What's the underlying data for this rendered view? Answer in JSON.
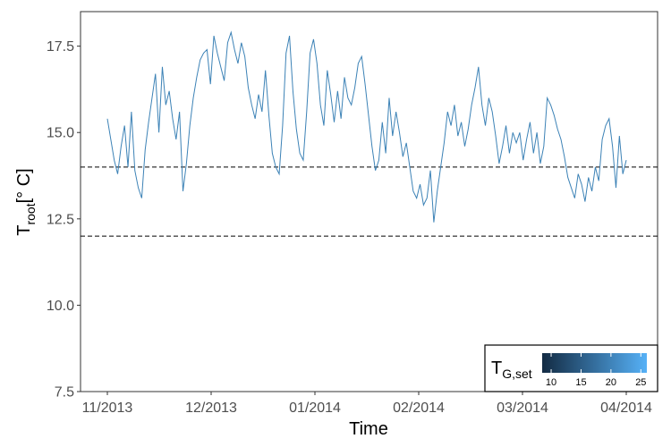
{
  "chart_data": {
    "type": "line",
    "xlabel": "Time",
    "ylabel": {
      "main": "T",
      "sub": "root",
      "unit": "[° C]"
    },
    "x_ticks": [
      "11/2013",
      "12/2013",
      "01/2014",
      "02/2014",
      "03/2014",
      "04/2014"
    ],
    "x_range": [
      "2013-11-01",
      "2014-04-01"
    ],
    "y_ticks": [
      "7.5",
      "10.0",
      "12.5",
      "15.0",
      "17.5"
    ],
    "ylim": [
      7.5,
      18.5
    ],
    "grid": false,
    "reference_lines": [
      {
        "y": 14.0,
        "style": "dashed"
      },
      {
        "y": 12.0,
        "style": "dashed"
      }
    ],
    "series": [
      {
        "color": "#3c82b6",
        "points": [
          [
            "2013-11-01",
            15.4
          ],
          [
            "2013-11-02",
            14.8
          ],
          [
            "2013-11-03",
            14.2
          ],
          [
            "2013-11-04",
            13.8
          ],
          [
            "2013-11-05",
            14.6
          ],
          [
            "2013-11-06",
            15.2
          ],
          [
            "2013-11-07",
            14.0
          ],
          [
            "2013-11-08",
            15.6
          ],
          [
            "2013-11-09",
            13.9
          ],
          [
            "2013-11-10",
            13.4
          ],
          [
            "2013-11-11",
            13.1
          ],
          [
            "2013-11-12",
            14.5
          ],
          [
            "2013-11-13",
            15.3
          ],
          [
            "2013-11-14",
            16.0
          ],
          [
            "2013-11-15",
            16.7
          ],
          [
            "2013-11-16",
            15.0
          ],
          [
            "2013-11-17",
            16.9
          ],
          [
            "2013-11-18",
            15.8
          ],
          [
            "2013-11-19",
            16.2
          ],
          [
            "2013-11-20",
            15.4
          ],
          [
            "2013-11-21",
            14.8
          ],
          [
            "2013-11-22",
            15.6
          ],
          [
            "2013-11-23",
            13.3
          ],
          [
            "2013-11-24",
            14.1
          ],
          [
            "2013-11-25",
            15.2
          ],
          [
            "2013-11-26",
            16.0
          ],
          [
            "2013-11-27",
            16.6
          ],
          [
            "2013-11-28",
            17.1
          ],
          [
            "2013-11-29",
            17.3
          ],
          [
            "2013-11-30",
            17.4
          ],
          [
            "2013-12-01",
            16.4
          ],
          [
            "2013-12-02",
            17.8
          ],
          [
            "2013-12-03",
            17.3
          ],
          [
            "2013-12-04",
            16.9
          ],
          [
            "2013-12-05",
            16.5
          ],
          [
            "2013-12-06",
            17.6
          ],
          [
            "2013-12-07",
            17.9
          ],
          [
            "2013-12-08",
            17.4
          ],
          [
            "2013-12-09",
            17.0
          ],
          [
            "2013-12-10",
            17.6
          ],
          [
            "2013-12-11",
            17.2
          ],
          [
            "2013-12-12",
            16.3
          ],
          [
            "2013-12-13",
            15.8
          ],
          [
            "2013-12-14",
            15.4
          ],
          [
            "2013-12-15",
            16.1
          ],
          [
            "2013-12-16",
            15.6
          ],
          [
            "2013-12-17",
            16.8
          ],
          [
            "2013-12-18",
            15.5
          ],
          [
            "2013-12-19",
            14.4
          ],
          [
            "2013-12-20",
            14.0
          ],
          [
            "2013-12-21",
            13.8
          ],
          [
            "2013-12-22",
            15.2
          ],
          [
            "2013-12-23",
            17.3
          ],
          [
            "2013-12-24",
            17.8
          ],
          [
            "2013-12-25",
            16.2
          ],
          [
            "2013-12-26",
            15.1
          ],
          [
            "2013-12-27",
            14.4
          ],
          [
            "2013-12-28",
            14.2
          ],
          [
            "2013-12-29",
            15.6
          ],
          [
            "2013-12-30",
            17.3
          ],
          [
            "2013-12-31",
            17.7
          ],
          [
            "2014-01-01",
            17.0
          ],
          [
            "2014-01-02",
            15.8
          ],
          [
            "2014-01-03",
            15.2
          ],
          [
            "2014-01-04",
            16.8
          ],
          [
            "2014-01-05",
            16.1
          ],
          [
            "2014-01-06",
            15.3
          ],
          [
            "2014-01-07",
            16.2
          ],
          [
            "2014-01-08",
            15.4
          ],
          [
            "2014-01-09",
            16.6
          ],
          [
            "2014-01-10",
            16.0
          ],
          [
            "2014-01-11",
            15.8
          ],
          [
            "2014-01-12",
            16.3
          ],
          [
            "2014-01-13",
            17.0
          ],
          [
            "2014-01-14",
            17.2
          ],
          [
            "2014-01-15",
            16.4
          ],
          [
            "2014-01-16",
            15.5
          ],
          [
            "2014-01-17",
            14.6
          ],
          [
            "2014-01-18",
            13.9
          ],
          [
            "2014-01-19",
            14.2
          ],
          [
            "2014-01-20",
            15.3
          ],
          [
            "2014-01-21",
            14.4
          ],
          [
            "2014-01-22",
            16.0
          ],
          [
            "2014-01-23",
            14.9
          ],
          [
            "2014-01-24",
            15.6
          ],
          [
            "2014-01-25",
            15.0
          ],
          [
            "2014-01-26",
            14.3
          ],
          [
            "2014-01-27",
            14.7
          ],
          [
            "2014-01-28",
            14.0
          ],
          [
            "2014-01-29",
            13.3
          ],
          [
            "2014-01-30",
            13.1
          ],
          [
            "2014-01-31",
            13.5
          ],
          [
            "2014-02-01",
            12.9
          ],
          [
            "2014-02-02",
            13.1
          ],
          [
            "2014-02-03",
            13.9
          ],
          [
            "2014-02-04",
            12.4
          ],
          [
            "2014-02-05",
            13.3
          ],
          [
            "2014-02-06",
            14.0
          ],
          [
            "2014-02-07",
            14.7
          ],
          [
            "2014-02-08",
            15.6
          ],
          [
            "2014-02-09",
            15.2
          ],
          [
            "2014-02-10",
            15.8
          ],
          [
            "2014-02-11",
            14.9
          ],
          [
            "2014-02-12",
            15.3
          ],
          [
            "2014-02-13",
            14.6
          ],
          [
            "2014-02-14",
            15.1
          ],
          [
            "2014-02-15",
            15.8
          ],
          [
            "2014-02-16",
            16.3
          ],
          [
            "2014-02-17",
            16.9
          ],
          [
            "2014-02-18",
            15.8
          ],
          [
            "2014-02-19",
            15.2
          ],
          [
            "2014-02-20",
            16.0
          ],
          [
            "2014-02-21",
            15.6
          ],
          [
            "2014-02-22",
            14.9
          ],
          [
            "2014-02-23",
            14.1
          ],
          [
            "2014-02-24",
            14.6
          ],
          [
            "2014-02-25",
            15.2
          ],
          [
            "2014-02-26",
            14.4
          ],
          [
            "2014-02-27",
            15.0
          ],
          [
            "2014-02-28",
            14.7
          ],
          [
            "2014-03-01",
            15.0
          ],
          [
            "2014-03-02",
            14.2
          ],
          [
            "2014-03-03",
            14.8
          ],
          [
            "2014-03-04",
            15.3
          ],
          [
            "2014-03-05",
            14.4
          ],
          [
            "2014-03-06",
            15.0
          ],
          [
            "2014-03-07",
            14.1
          ],
          [
            "2014-03-08",
            14.6
          ],
          [
            "2014-03-09",
            16.0
          ],
          [
            "2014-03-10",
            15.8
          ],
          [
            "2014-03-11",
            15.5
          ],
          [
            "2014-03-12",
            15.1
          ],
          [
            "2014-03-13",
            14.8
          ],
          [
            "2014-03-14",
            14.3
          ],
          [
            "2014-03-15",
            13.7
          ],
          [
            "2014-03-16",
            13.4
          ],
          [
            "2014-03-17",
            13.1
          ],
          [
            "2014-03-18",
            13.8
          ],
          [
            "2014-03-19",
            13.5
          ],
          [
            "2014-03-20",
            13.0
          ],
          [
            "2014-03-21",
            13.7
          ],
          [
            "2014-03-22",
            13.3
          ],
          [
            "2014-03-23",
            14.0
          ],
          [
            "2014-03-24",
            13.6
          ],
          [
            "2014-03-25",
            14.8
          ],
          [
            "2014-03-26",
            15.2
          ],
          [
            "2014-03-27",
            15.4
          ],
          [
            "2014-03-28",
            14.6
          ],
          [
            "2014-03-29",
            13.4
          ],
          [
            "2014-03-30",
            14.9
          ],
          [
            "2014-03-31",
            13.8
          ],
          [
            "2014-04-01",
            14.2
          ]
        ]
      }
    ],
    "legend": {
      "placement": "bottom-right",
      "title_main": "T",
      "title_sub": "G,set",
      "range": [
        8.5,
        26
      ],
      "ticks": [
        10,
        15,
        20,
        25
      ],
      "color_low": "#132b43",
      "color_high": "#56b1f7"
    },
    "axis_line_color": "#333333",
    "tick_label_color": "#4d4d4d"
  }
}
